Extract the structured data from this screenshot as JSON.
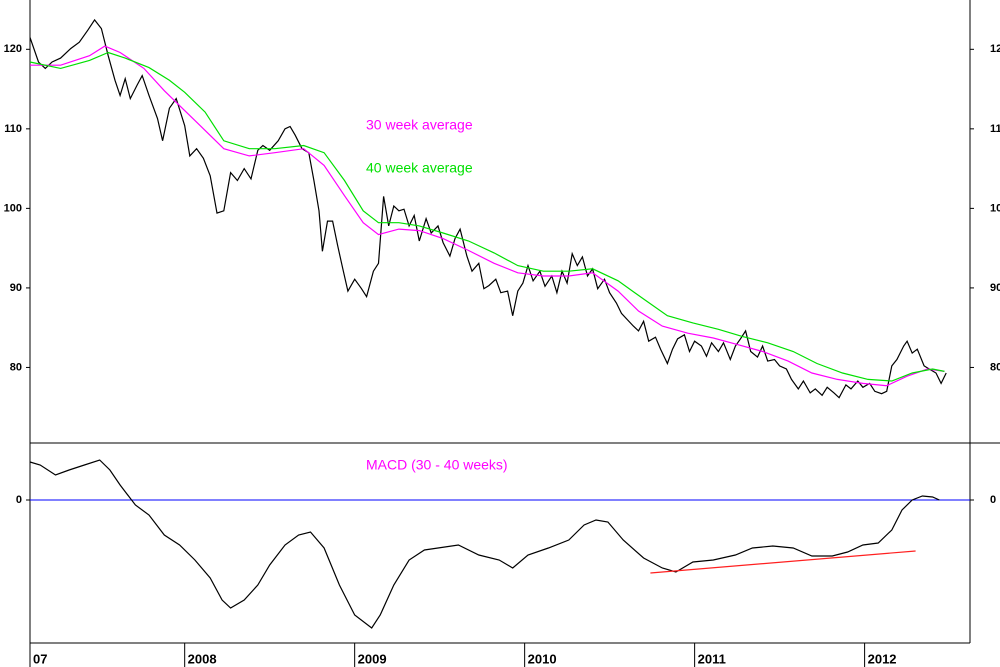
{
  "chart_data": [
    {
      "type": "line",
      "xlim": [
        2007.09,
        2012.62
      ],
      "ylim": [
        70.5,
        126.2
      ],
      "yticks": [
        80,
        90,
        100,
        110,
        120
      ],
      "grid": false,
      "legend": "center",
      "series": [
        {
          "color": "#000000",
          "x": [
            2007.09,
            2007.14,
            2007.18,
            2007.22,
            2007.27,
            2007.33,
            2007.38,
            2007.43,
            2007.47,
            2007.51,
            2007.55,
            2007.59,
            2007.62,
            2007.65,
            2007.68,
            2007.72,
            2007.75,
            2007.79,
            2007.84,
            2007.87,
            2007.91,
            2007.95,
            2008.0,
            2008.03,
            2008.07,
            2008.11,
            2008.15,
            2008.19,
            2008.23,
            2008.27,
            2008.31,
            2008.35,
            2008.39,
            2008.43,
            2008.46,
            2008.5,
            2008.55,
            2008.59,
            2008.62,
            2008.65,
            2008.69,
            2008.73,
            2008.76,
            2008.79,
            2008.81,
            2008.84,
            2008.87,
            2008.9,
            2008.93,
            2008.96,
            2009.0,
            2009.04,
            2009.07,
            2009.11,
            2009.14,
            2009.17,
            2009.2,
            2009.23,
            2009.26,
            2009.29,
            2009.32,
            2009.35,
            2009.38,
            2009.42,
            2009.45,
            2009.49,
            2009.52,
            2009.56,
            2009.59,
            2009.62,
            2009.66,
            2009.69,
            2009.73,
            2009.76,
            2009.79,
            2009.83,
            2009.86,
            2009.9,
            2009.93,
            2009.96,
            2009.99,
            2010.02,
            2010.05,
            2010.09,
            2010.12,
            2010.16,
            2010.19,
            2010.22,
            2010.25,
            2010.28,
            2010.31,
            2010.34,
            2010.37,
            2010.4,
            2010.43,
            2010.47,
            2010.5,
            2010.54,
            2010.57,
            2010.6,
            2010.64,
            2010.67,
            2010.7,
            2010.73,
            2010.77,
            2010.8,
            2010.84,
            2010.87,
            2010.9,
            2010.94,
            2010.97,
            2011.0,
            2011.04,
            2011.07,
            2011.1,
            2011.14,
            2011.17,
            2011.21,
            2011.24,
            2011.27,
            2011.3,
            2011.33,
            2011.37,
            2011.4,
            2011.43,
            2011.47,
            2011.5,
            2011.54,
            2011.57,
            2011.61,
            2011.64,
            2011.68,
            2011.71,
            2011.75,
            2011.78,
            2011.82,
            2011.85,
            2011.89,
            2011.92,
            2011.96,
            2011.99,
            2012.03,
            2012.06,
            2012.1,
            2012.13,
            2012.16,
            2012.19,
            2012.23,
            2012.25,
            2012.28,
            2012.31,
            2012.35,
            2012.38,
            2012.42,
            2012.45,
            2012.48
          ],
          "values": [
            121.5,
            118.4,
            117.6,
            118.4,
            118.9,
            120.1,
            120.9,
            122.4,
            123.7,
            122.6,
            119.2,
            116.1,
            114.2,
            116.3,
            113.8,
            115.5,
            116.7,
            114.2,
            111.3,
            108.5,
            112.6,
            113.8,
            110.4,
            106.6,
            107.5,
            106.3,
            104.1,
            99.4,
            99.7,
            104.5,
            103.5,
            105.0,
            103.7,
            107.3,
            107.9,
            107.3,
            108.5,
            110.0,
            110.3,
            109.2,
            107.5,
            107.0,
            103.5,
            99.7,
            94.6,
            98.4,
            98.4,
            95.3,
            92.4,
            89.6,
            91.1,
            89.9,
            88.9,
            92.1,
            93.1,
            101.5,
            97.8,
            100.3,
            99.7,
            99.9,
            97.8,
            99.1,
            95.9,
            98.7,
            96.9,
            97.8,
            95.7,
            94.0,
            96.2,
            97.4,
            94.0,
            92.1,
            93.1,
            89.9,
            90.3,
            91.1,
            89.4,
            89.6,
            86.5,
            89.6,
            90.6,
            92.8,
            90.9,
            92.1,
            90.2,
            91.5,
            89.4,
            92.1,
            90.6,
            94.3,
            92.8,
            93.9,
            91.5,
            92.4,
            89.9,
            91.1,
            89.4,
            88.1,
            86.8,
            86.1,
            85.2,
            84.6,
            85.8,
            83.3,
            83.8,
            82.3,
            80.5,
            82.3,
            83.6,
            84.1,
            82.0,
            83.3,
            82.7,
            81.4,
            83.1,
            82.0,
            83.1,
            81.0,
            82.7,
            83.6,
            84.6,
            82.0,
            81.3,
            82.7,
            80.8,
            81.0,
            80.2,
            79.8,
            78.5,
            77.3,
            78.3,
            76.8,
            77.3,
            76.5,
            77.5,
            76.8,
            76.2,
            77.8,
            77.3,
            78.3,
            77.5,
            78.0,
            77.0,
            76.7,
            77.0,
            80.2,
            81.0,
            82.7,
            83.3,
            81.8,
            82.3,
            80.2,
            79.8,
            79.3,
            78.0,
            79.3
          ]
        },
        {
          "name": "30 week average",
          "color": "#ff00ff",
          "x": [
            2007.09,
            2007.27,
            2007.44,
            2007.53,
            2007.62,
            2007.76,
            2007.88,
            2008.0,
            2008.12,
            2008.23,
            2008.38,
            2008.53,
            2008.7,
            2008.82,
            2008.94,
            2009.05,
            2009.14,
            2009.26,
            2009.38,
            2009.52,
            2009.67,
            2009.82,
            2009.96,
            2010.11,
            2010.26,
            2010.4,
            2010.55,
            2010.67,
            2010.81,
            2010.96,
            2011.11,
            2011.25,
            2011.4,
            2011.55,
            2011.69,
            2011.84,
            2011.99,
            2012.13,
            2012.25,
            2012.37,
            2012.47
          ],
          "values": [
            118.0,
            118.0,
            119.2,
            120.4,
            119.6,
            117.6,
            114.8,
            112.3,
            109.8,
            107.5,
            106.6,
            107.0,
            107.5,
            105.4,
            101.6,
            98.2,
            96.7,
            97.4,
            97.2,
            96.2,
            94.7,
            93.1,
            91.9,
            91.5,
            91.5,
            91.9,
            89.6,
            87.1,
            85.2,
            84.3,
            83.7,
            82.9,
            82.0,
            80.8,
            79.3,
            78.5,
            78.0,
            77.7,
            78.9,
            79.8,
            79.5
          ]
        },
        {
          "name": "40 week average",
          "color": "#00e000",
          "x": [
            2007.09,
            2007.27,
            2007.44,
            2007.55,
            2007.65,
            2007.79,
            2007.91,
            2008.0,
            2008.12,
            2008.23,
            2008.38,
            2008.53,
            2008.7,
            2008.82,
            2008.94,
            2009.05,
            2009.14,
            2009.26,
            2009.38,
            2009.52,
            2009.67,
            2009.82,
            2009.96,
            2010.11,
            2010.26,
            2010.4,
            2010.55,
            2010.7,
            2010.84,
            2010.99,
            2011.14,
            2011.28,
            2011.43,
            2011.58,
            2011.72,
            2011.87,
            2012.02,
            2012.16,
            2012.28,
            2012.4,
            2012.47
          ],
          "values": [
            118.4,
            117.6,
            118.6,
            119.6,
            118.9,
            117.7,
            116.1,
            114.6,
            112.1,
            108.5,
            107.5,
            107.5,
            107.9,
            107.0,
            103.5,
            99.7,
            98.2,
            98.2,
            97.8,
            96.9,
            95.9,
            94.4,
            92.8,
            92.1,
            92.1,
            92.4,
            90.9,
            88.6,
            86.5,
            85.6,
            84.8,
            83.9,
            83.1,
            82.0,
            80.5,
            79.3,
            78.5,
            78.3,
            79.3,
            79.8,
            79.5
          ]
        }
      ]
    },
    {
      "type": "line",
      "title": "MACD (30 - 40 weeks)",
      "title_color": "#ff00ff",
      "xlim": [
        2007.09,
        2012.62
      ],
      "ylim": [
        -2.86,
        1.14
      ],
      "yticks": [
        0
      ],
      "grid": true,
      "grid_color": "#0000ff",
      "xticks": [
        {
          "value": 2007,
          "label": "07"
        },
        2008,
        2009,
        2010,
        2011,
        2012
      ],
      "series": [
        {
          "color": "#000000",
          "x": [
            2007.09,
            2007.15,
            2007.24,
            2007.32,
            2007.41,
            2007.5,
            2007.56,
            2007.62,
            2007.71,
            2007.79,
            2007.88,
            2007.97,
            2008.06,
            2008.15,
            2008.22,
            2008.27,
            2008.35,
            2008.43,
            2008.5,
            2008.59,
            2008.67,
            2008.74,
            2008.82,
            2008.91,
            2009.0,
            2009.1,
            2009.15,
            2009.23,
            2009.32,
            2009.41,
            2009.49,
            2009.61,
            2009.73,
            2009.85,
            2009.93,
            2010.02,
            2010.14,
            2010.26,
            2010.35,
            2010.42,
            2010.49,
            2010.58,
            2010.7,
            2010.81,
            2010.89,
            2010.99,
            2011.11,
            2011.24,
            2011.34,
            2011.46,
            2011.58,
            2011.69,
            2011.81,
            2011.9,
            2011.99,
            2012.08,
            2012.16,
            2012.22,
            2012.28,
            2012.34,
            2012.4,
            2012.44
          ],
          "values": [
            0.76,
            0.7,
            0.5,
            0.6,
            0.7,
            0.8,
            0.6,
            0.3,
            -0.1,
            -0.3,
            -0.7,
            -0.9,
            -1.2,
            -1.56,
            -2.0,
            -2.16,
            -2.0,
            -1.7,
            -1.3,
            -0.9,
            -0.7,
            -0.64,
            -0.96,
            -1.7,
            -2.3,
            -2.56,
            -2.3,
            -1.7,
            -1.2,
            -1.0,
            -0.96,
            -0.9,
            -1.1,
            -1.2,
            -1.36,
            -1.1,
            -0.96,
            -0.8,
            -0.5,
            -0.4,
            -0.44,
            -0.8,
            -1.16,
            -1.36,
            -1.44,
            -1.24,
            -1.2,
            -1.1,
            -0.96,
            -0.92,
            -0.96,
            -1.12,
            -1.12,
            -1.04,
            -0.9,
            -0.86,
            -0.6,
            -0.2,
            0,
            0.08,
            0.06,
            0
          ]
        },
        {
          "color": "#ff2020",
          "x": [
            2010.74,
            2012.3
          ],
          "values": [
            -1.46,
            -1.02
          ]
        }
      ]
    }
  ]
}
